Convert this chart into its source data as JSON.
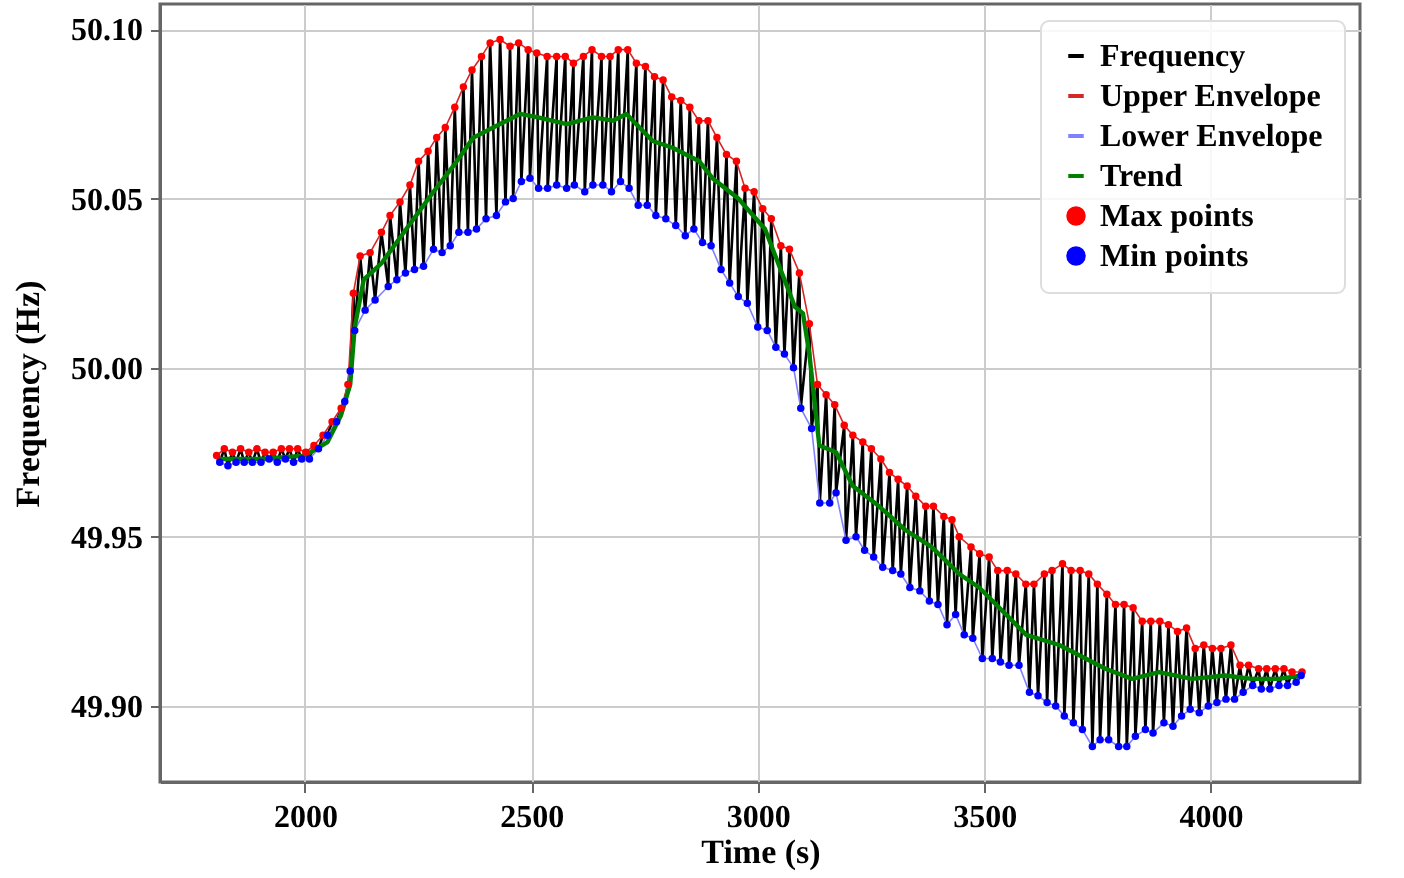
{
  "chart_data": {
    "type": "line",
    "xlabel": "Time (s)",
    "ylabel": "Frequency (Hz)",
    "xlim": [
      1680,
      4330
    ],
    "xticks": [
      2000,
      2500,
      3000,
      3500,
      4000
    ],
    "ylim": [
      49.8775,
      50.1075
    ],
    "yticks": [
      {
        "value": 49.9,
        "label": "49.90"
      },
      49.95,
      {
        "value": 50.0,
        "label": "50.00"
      },
      50.05,
      {
        "value": 50.1,
        "label": "50.10"
      }
    ],
    "grid": true,
    "legend": "top right",
    "series": [
      {
        "name": "Frequency",
        "color": "#000000",
        "x": [
          1805,
          1822,
          1840,
          1858,
          1876,
          1894,
          1912,
          1930,
          1948,
          1966,
          1984,
          2002,
          2020,
          2040,
          2060,
          2080,
          2095,
          2107,
          2122,
          2144,
          2169,
          2188,
          2210,
          2232,
          2251,
          2272,
          2291,
          2310,
          2331,
          2350,
          2369,
          2390,
          2409,
          2431,
          2453,
          2472,
          2493,
          2512,
          2535,
          2556,
          2575,
          2593,
          2615,
          2634,
          2655,
          2674,
          2692,
          2713,
          2732,
          2752,
          2772,
          2791,
          2810,
          2830,
          2850,
          2870,
          2890,
          2910,
          2931,
          2953,
          2972,
          2992,
          3011,
          3030,
          3051,
          3070,
          3092,
          3114,
          3132,
          3151,
          3170,
          3191,
          3210,
          3232,
          3251,
          3272,
          3291,
          3310,
          3330,
          3349,
          3371,
          3388,
          3411,
          3429,
          3445,
          3471,
          3490,
          3511,
          3530,
          3551,
          3570,
          3592,
          3610,
          3633,
          3650,
          3673,
          3692,
          3712,
          3731,
          3750,
          3771,
          3790,
          3809,
          3829,
          3849,
          3868,
          3888,
          3907,
          3927,
          3947,
          3966,
          3985,
          4004,
          4023,
          4045,
          4065,
          4084,
          4106,
          4124,
          4143,
          4162,
          4180,
          4202,
          1812,
          1830,
          1848,
          1866,
          1884,
          1903,
          1921,
          1939,
          1957,
          1975,
          1993,
          2010,
          2030,
          2050,
          2070,
          2088,
          2100,
          2110,
          2133,
          2155,
          2184,
          2203,
          2222,
          2242,
          2262,
          2284,
          2303,
          2321,
          2340,
          2360,
          2379,
          2400,
          2423,
          2443,
          2460,
          2478,
          2497,
          2516,
          2536,
          2556,
          2578,
          2595,
          2618,
          2636,
          2658,
          2677,
          2697,
          2716,
          2736,
          2756,
          2775,
          2797,
          2819,
          2840,
          2859,
          2878,
          2897,
          2919,
          2938,
          2957,
          2977,
          3000,
          3021,
          3040,
          3059,
          3079,
          3095,
          3119,
          3137,
          3159,
          3173,
          3195,
          3217,
          3236,
          3256,
          3276,
          3298,
          3316,
          3336,
          3358,
          3379,
          3398,
          3418,
          3437,
          3456,
          3475,
          3496,
          3518,
          3536,
          3555,
          3577,
          3600,
          3619,
          3639,
          3658,
          3677,
          3697,
          3717,
          3739,
          3756,
          3775,
          3797,
          3815,
          3834,
          3856,
          3873,
          3897,
          3917,
          3936,
          3955,
          3975,
          3995,
          4014,
          4034,
          4053,
          4072,
          4093,
          4112,
          4131,
          4151,
          4170,
          4189,
          4200
        ],
        "values": [
          49.974,
          49.976,
          49.975,
          49.976,
          49.975,
          49.976,
          49.975,
          49.975,
          49.976,
          49.976,
          49.976,
          49.975,
          49.977,
          49.98,
          49.984,
          49.988,
          49.995,
          50.022,
          50.033,
          50.034,
          50.04,
          50.045,
          50.049,
          50.054,
          50.061,
          50.064,
          50.068,
          50.071,
          50.077,
          50.083,
          50.088,
          50.092,
          50.096,
          50.097,
          50.095,
          50.096,
          50.094,
          50.093,
          50.092,
          50.092,
          50.092,
          50.09,
          50.092,
          50.094,
          50.092,
          50.092,
          50.094,
          50.094,
          50.09,
          50.089,
          50.086,
          50.085,
          50.08,
          50.079,
          50.077,
          50.073,
          50.073,
          50.068,
          50.063,
          50.061,
          50.053,
          50.052,
          50.047,
          50.044,
          50.036,
          50.035,
          50.028,
          50.013,
          49.995,
          49.992,
          49.989,
          49.983,
          49.98,
          49.978,
          49.976,
          49.973,
          49.969,
          49.967,
          49.965,
          49.962,
          49.959,
          49.959,
          49.956,
          49.955,
          49.95,
          49.947,
          49.945,
          49.944,
          49.94,
          49.94,
          49.939,
          49.936,
          49.936,
          49.939,
          49.94,
          49.942,
          49.94,
          49.94,
          49.939,
          49.936,
          49.933,
          49.93,
          49.93,
          49.929,
          49.925,
          49.925,
          49.925,
          49.924,
          49.922,
          49.923,
          49.917,
          49.918,
          49.917,
          49.917,
          49.918,
          49.912,
          49.912,
          49.911,
          49.911,
          49.911,
          49.911,
          49.91,
          49.91,
          49.972,
          49.971,
          49.972,
          49.972,
          49.972,
          49.972,
          49.973,
          49.972,
          49.973,
          49.972,
          49.973,
          49.973,
          49.976,
          49.98,
          49.984,
          49.99,
          49.999,
          50.011,
          50.017,
          50.02,
          50.024,
          50.026,
          50.028,
          50.029,
          50.03,
          50.035,
          50.034,
          50.036,
          50.04,
          50.04,
          50.041,
          50.044,
          50.045,
          50.049,
          50.05,
          50.055,
          50.056,
          50.053,
          50.053,
          50.054,
          50.053,
          50.054,
          50.052,
          50.054,
          50.054,
          50.052,
          50.055,
          50.053,
          50.048,
          50.048,
          50.045,
          50.044,
          50.042,
          50.039,
          50.041,
          50.037,
          50.036,
          50.029,
          50.025,
          50.021,
          50.019,
          50.012,
          50.011,
          50.006,
          50.004,
          50.0,
          49.988,
          49.982,
          49.96,
          49.96,
          49.963,
          49.949,
          49.95,
          49.946,
          49.944,
          49.941,
          49.94,
          49.939,
          49.935,
          49.934,
          49.931,
          49.93,
          49.924,
          49.927,
          49.921,
          49.92,
          49.914,
          49.914,
          49.913,
          49.912,
          49.912,
          49.904,
          49.903,
          49.901,
          49.9,
          49.897,
          49.895,
          49.893,
          49.888,
          49.89,
          49.89,
          49.888,
          49.888,
          49.891,
          49.893,
          49.892,
          49.895,
          49.894,
          49.897,
          49.899,
          49.898,
          49.9,
          49.901,
          49.902,
          49.902,
          49.904,
          49.906,
          49.905,
          49.905,
          49.906,
          49.906,
          49.907,
          49.909
        ]
      },
      {
        "name": "Upper Envelope",
        "color": "#d62728",
        "x": [
          1805,
          1822,
          1840,
          1858,
          1876,
          1894,
          1912,
          1930,
          1948,
          1966,
          1984,
          2002,
          2020,
          2040,
          2060,
          2080,
          2095,
          2107,
          2122,
          2144,
          2169,
          2188,
          2210,
          2232,
          2251,
          2272,
          2291,
          2310,
          2331,
          2350,
          2369,
          2390,
          2409,
          2431,
          2453,
          2472,
          2493,
          2512,
          2535,
          2556,
          2575,
          2593,
          2615,
          2634,
          2655,
          2674,
          2692,
          2713,
          2732,
          2752,
          2772,
          2791,
          2810,
          2830,
          2850,
          2870,
          2890,
          2910,
          2931,
          2953,
          2972,
          2992,
          3011,
          3030,
          3051,
          3070,
          3092,
          3114,
          3132,
          3151,
          3170,
          3191,
          3210,
          3232,
          3251,
          3272,
          3291,
          3310,
          3330,
          3349,
          3371,
          3388,
          3411,
          3429,
          3445,
          3471,
          3490,
          3511,
          3530,
          3551,
          3570,
          3592,
          3610,
          3633,
          3650,
          3673,
          3692,
          3712,
          3731,
          3750,
          3771,
          3790,
          3809,
          3829,
          3849,
          3868,
          3888,
          3907,
          3927,
          3947,
          3966,
          3985,
          4004,
          4023,
          4045,
          4065,
          4084,
          4106,
          4124,
          4143,
          4162,
          4180,
          4202
        ],
        "values": [
          49.974,
          49.976,
          49.975,
          49.976,
          49.975,
          49.976,
          49.975,
          49.975,
          49.976,
          49.976,
          49.976,
          49.975,
          49.977,
          49.98,
          49.984,
          49.988,
          49.995,
          50.022,
          50.033,
          50.034,
          50.04,
          50.045,
          50.049,
          50.054,
          50.061,
          50.064,
          50.068,
          50.071,
          50.077,
          50.083,
          50.088,
          50.092,
          50.096,
          50.097,
          50.095,
          50.096,
          50.094,
          50.093,
          50.092,
          50.092,
          50.092,
          50.09,
          50.092,
          50.094,
          50.092,
          50.092,
          50.094,
          50.094,
          50.09,
          50.089,
          50.086,
          50.085,
          50.08,
          50.079,
          50.077,
          50.073,
          50.073,
          50.068,
          50.063,
          50.061,
          50.053,
          50.052,
          50.047,
          50.044,
          50.036,
          50.035,
          50.028,
          50.013,
          49.995,
          49.992,
          49.989,
          49.983,
          49.98,
          49.978,
          49.976,
          49.973,
          49.969,
          49.967,
          49.965,
          49.962,
          49.959,
          49.959,
          49.956,
          49.955,
          49.95,
          49.947,
          49.945,
          49.944,
          49.94,
          49.94,
          49.939,
          49.936,
          49.936,
          49.939,
          49.94,
          49.942,
          49.94,
          49.94,
          49.939,
          49.936,
          49.933,
          49.93,
          49.93,
          49.929,
          49.925,
          49.925,
          49.925,
          49.924,
          49.922,
          49.923,
          49.917,
          49.918,
          49.917,
          49.917,
          49.918,
          49.912,
          49.912,
          49.911,
          49.911,
          49.911,
          49.911,
          49.91,
          49.91
        ]
      },
      {
        "name": "Lower Envelope",
        "color": "#8080ff",
        "x": [
          1812,
          1830,
          1848,
          1866,
          1884,
          1903,
          1921,
          1939,
          1957,
          1975,
          1993,
          2010,
          2030,
          2050,
          2070,
          2088,
          2100,
          2110,
          2133,
          2155,
          2184,
          2203,
          2222,
          2242,
          2262,
          2284,
          2303,
          2321,
          2340,
          2360,
          2379,
          2400,
          2423,
          2443,
          2460,
          2478,
          2497,
          2516,
          2536,
          2556,
          2578,
          2595,
          2618,
          2636,
          2658,
          2677,
          2697,
          2716,
          2736,
          2756,
          2775,
          2797,
          2819,
          2840,
          2859,
          2878,
          2897,
          2919,
          2938,
          2957,
          2977,
          3000,
          3021,
          3040,
          3059,
          3079,
          3095,
          3119,
          3137,
          3159,
          3173,
          3195,
          3217,
          3236,
          3256,
          3276,
          3298,
          3316,
          3336,
          3358,
          3379,
          3398,
          3418,
          3437,
          3456,
          3475,
          3496,
          3518,
          3536,
          3555,
          3577,
          3600,
          3619,
          3639,
          3658,
          3677,
          3697,
          3717,
          3739,
          3756,
          3775,
          3797,
          3815,
          3834,
          3856,
          3873,
          3897,
          3917,
          3936,
          3955,
          3975,
          3995,
          4014,
          4034,
          4053,
          4072,
          4093,
          4112,
          4131,
          4151,
          4170,
          4189,
          4200
        ],
        "values": [
          49.972,
          49.971,
          49.972,
          49.972,
          49.972,
          49.972,
          49.973,
          49.972,
          49.973,
          49.972,
          49.973,
          49.973,
          49.976,
          49.98,
          49.984,
          49.99,
          49.999,
          50.011,
          50.017,
          50.02,
          50.024,
          50.026,
          50.028,
          50.029,
          50.03,
          50.035,
          50.034,
          50.036,
          50.04,
          50.04,
          50.041,
          50.044,
          50.045,
          50.049,
          50.05,
          50.055,
          50.056,
          50.053,
          50.053,
          50.054,
          50.053,
          50.054,
          50.052,
          50.054,
          50.054,
          50.052,
          50.055,
          50.053,
          50.048,
          50.048,
          50.045,
          50.044,
          50.042,
          50.039,
          50.041,
          50.037,
          50.036,
          50.029,
          50.025,
          50.021,
          50.019,
          50.012,
          50.011,
          50.006,
          50.004,
          50.0,
          49.988,
          49.982,
          49.96,
          49.96,
          49.963,
          49.949,
          49.95,
          49.946,
          49.944,
          49.941,
          49.94,
          49.939,
          49.935,
          49.934,
          49.931,
          49.93,
          49.924,
          49.927,
          49.921,
          49.92,
          49.914,
          49.914,
          49.913,
          49.912,
          49.912,
          49.904,
          49.903,
          49.901,
          49.9,
          49.897,
          49.895,
          49.893,
          49.888,
          49.89,
          49.89,
          49.888,
          49.888,
          49.891,
          49.893,
          49.892,
          49.895,
          49.894,
          49.897,
          49.899,
          49.898,
          49.9,
          49.901,
          49.902,
          49.902,
          49.904,
          49.906,
          49.905,
          49.905,
          49.906,
          49.906,
          49.907,
          49.909
        ]
      },
      {
        "name": "Trend",
        "color": "#008000",
        "x": [
          1805,
          1900,
          2000,
          2050,
          2080,
          2100,
          2110,
          2130,
          2170,
          2224,
          2284,
          2330,
          2372,
          2431,
          2475,
          2515,
          2578,
          2636,
          2680,
          2710,
          2768,
          2812,
          2871,
          2900,
          2957,
          3016,
          3082,
          3100,
          3114,
          3136,
          3173,
          3210,
          3268,
          3326,
          3384,
          3445,
          3489,
          3593,
          3666,
          3768,
          3827,
          3886,
          3959,
          4032,
          4091,
          4150,
          4202
        ],
        "values": [
          49.973,
          49.973,
          49.974,
          49.978,
          49.986,
          49.995,
          50.012,
          50.026,
          50.031,
          50.041,
          50.052,
          50.06,
          50.068,
          50.072,
          50.075,
          50.074,
          50.072,
          50.074,
          50.073,
          50.075,
          50.067,
          50.065,
          50.061,
          50.056,
          50.05,
          50.041,
          50.018,
          50.016,
          50.004,
          49.977,
          49.975,
          49.965,
          49.959,
          49.952,
          49.947,
          49.939,
          49.935,
          49.921,
          49.918,
          49.911,
          49.908,
          49.91,
          49.908,
          49.909,
          49.908,
          49.908,
          49.909
        ]
      },
      {
        "name": "Max points",
        "type": "scatter",
        "color": "#ff0000",
        "x": [
          1805,
          1822,
          1840,
          1858,
          1876,
          1894,
          1912,
          1930,
          1948,
          1966,
          1984,
          2002,
          2020,
          2040,
          2060,
          2080,
          2095,
          2107,
          2122,
          2144,
          2169,
          2188,
          2210,
          2232,
          2251,
          2272,
          2291,
          2310,
          2331,
          2350,
          2369,
          2390,
          2409,
          2431,
          2453,
          2472,
          2493,
          2512,
          2535,
          2556,
          2575,
          2593,
          2615,
          2634,
          2655,
          2674,
          2692,
          2713,
          2732,
          2752,
          2772,
          2791,
          2810,
          2830,
          2850,
          2870,
          2890,
          2910,
          2931,
          2953,
          2972,
          2992,
          3011,
          3030,
          3051,
          3070,
          3092,
          3114,
          3132,
          3151,
          3170,
          3191,
          3210,
          3232,
          3251,
          3272,
          3291,
          3310,
          3330,
          3349,
          3371,
          3388,
          3411,
          3429,
          3445,
          3471,
          3490,
          3511,
          3530,
          3551,
          3570,
          3592,
          3610,
          3633,
          3650,
          3673,
          3692,
          3712,
          3731,
          3750,
          3771,
          3790,
          3809,
          3829,
          3849,
          3868,
          3888,
          3907,
          3927,
          3947,
          3966,
          3985,
          4004,
          4023,
          4045,
          4065,
          4084,
          4106,
          4124,
          4143,
          4162,
          4180,
          4202
        ],
        "values": [
          49.974,
          49.976,
          49.975,
          49.976,
          49.975,
          49.976,
          49.975,
          49.975,
          49.976,
          49.976,
          49.976,
          49.975,
          49.977,
          49.98,
          49.984,
          49.988,
          49.995,
          50.022,
          50.033,
          50.034,
          50.04,
          50.045,
          50.049,
          50.054,
          50.061,
          50.064,
          50.068,
          50.071,
          50.077,
          50.083,
          50.088,
          50.092,
          50.096,
          50.097,
          50.095,
          50.096,
          50.094,
          50.093,
          50.092,
          50.092,
          50.092,
          50.09,
          50.092,
          50.094,
          50.092,
          50.092,
          50.094,
          50.094,
          50.09,
          50.089,
          50.086,
          50.085,
          50.08,
          50.079,
          50.077,
          50.073,
          50.073,
          50.068,
          50.063,
          50.061,
          50.053,
          50.052,
          50.047,
          50.044,
          50.036,
          50.035,
          50.028,
          50.013,
          49.995,
          49.992,
          49.989,
          49.983,
          49.98,
          49.978,
          49.976,
          49.973,
          49.969,
          49.967,
          49.965,
          49.962,
          49.959,
          49.959,
          49.956,
          49.955,
          49.95,
          49.947,
          49.945,
          49.944,
          49.94,
          49.94,
          49.939,
          49.936,
          49.936,
          49.939,
          49.94,
          49.942,
          49.94,
          49.94,
          49.939,
          49.936,
          49.933,
          49.93,
          49.93,
          49.929,
          49.925,
          49.925,
          49.925,
          49.924,
          49.922,
          49.923,
          49.917,
          49.918,
          49.917,
          49.917,
          49.918,
          49.912,
          49.912,
          49.911,
          49.911,
          49.911,
          49.911,
          49.91,
          49.91
        ]
      },
      {
        "name": "Min points",
        "type": "scatter",
        "color": "#0000ff",
        "x": [
          1812,
          1830,
          1848,
          1866,
          1884,
          1903,
          1921,
          1939,
          1957,
          1975,
          1993,
          2010,
          2030,
          2050,
          2070,
          2088,
          2100,
          2110,
          2133,
          2155,
          2184,
          2203,
          2222,
          2242,
          2262,
          2284,
          2303,
          2321,
          2340,
          2360,
          2379,
          2400,
          2423,
          2443,
          2460,
          2478,
          2497,
          2516,
          2536,
          2556,
          2578,
          2595,
          2618,
          2636,
          2658,
          2677,
          2697,
          2716,
          2736,
          2756,
          2775,
          2797,
          2819,
          2840,
          2859,
          2878,
          2897,
          2919,
          2938,
          2957,
          2977,
          3000,
          3021,
          3040,
          3059,
          3079,
          3095,
          3119,
          3137,
          3159,
          3173,
          3195,
          3217,
          3236,
          3256,
          3276,
          3298,
          3316,
          3336,
          3358,
          3379,
          3398,
          3418,
          3437,
          3456,
          3475,
          3496,
          3518,
          3536,
          3555,
          3577,
          3600,
          3619,
          3639,
          3658,
          3677,
          3697,
          3717,
          3739,
          3756,
          3775,
          3797,
          3815,
          3834,
          3856,
          3873,
          3897,
          3917,
          3936,
          3955,
          3975,
          3995,
          4014,
          4034,
          4053,
          4072,
          4093,
          4112,
          4131,
          4151,
          4170,
          4189,
          4200
        ],
        "values": [
          49.972,
          49.971,
          49.972,
          49.972,
          49.972,
          49.972,
          49.973,
          49.972,
          49.973,
          49.972,
          49.973,
          49.973,
          49.976,
          49.98,
          49.984,
          49.99,
          49.999,
          50.011,
          50.017,
          50.02,
          50.024,
          50.026,
          50.028,
          50.029,
          50.03,
          50.035,
          50.034,
          50.036,
          50.04,
          50.04,
          50.041,
          50.044,
          50.045,
          50.049,
          50.05,
          50.055,
          50.056,
          50.053,
          50.053,
          50.054,
          50.053,
          50.054,
          50.052,
          50.054,
          50.054,
          50.052,
          50.055,
          50.053,
          50.048,
          50.048,
          50.045,
          50.044,
          50.042,
          50.039,
          50.041,
          50.037,
          50.036,
          50.029,
          50.025,
          50.021,
          50.019,
          50.012,
          50.011,
          50.006,
          50.004,
          50.0,
          49.988,
          49.982,
          49.96,
          49.96,
          49.963,
          49.949,
          49.95,
          49.946,
          49.944,
          49.941,
          49.94,
          49.939,
          49.935,
          49.934,
          49.931,
          49.93,
          49.924,
          49.927,
          49.921,
          49.92,
          49.914,
          49.914,
          49.913,
          49.912,
          49.912,
          49.904,
          49.903,
          49.901,
          49.9,
          49.897,
          49.895,
          49.893,
          49.888,
          49.89,
          49.89,
          49.888,
          49.888,
          49.891,
          49.893,
          49.892,
          49.895,
          49.894,
          49.897,
          49.899,
          49.898,
          49.9,
          49.901,
          49.902,
          49.902,
          49.904,
          49.906,
          49.905,
          49.905,
          49.906,
          49.906,
          49.907,
          49.909
        ]
      }
    ]
  }
}
